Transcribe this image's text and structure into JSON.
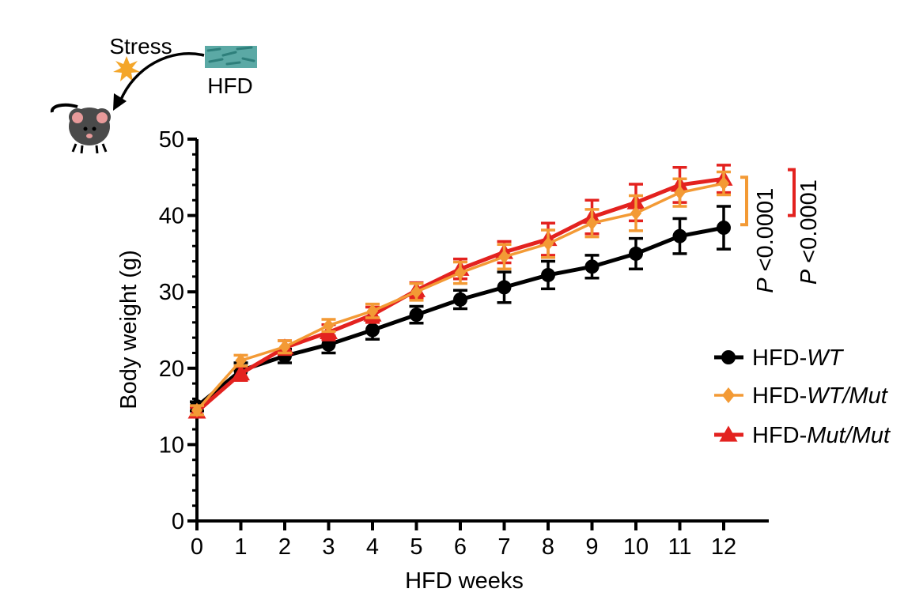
{
  "illustration": {
    "stress_label": "Stress",
    "food_label": "HFD",
    "mouse_icon": "mouse-icon",
    "stress_icon": "starburst-icon",
    "food_icon": "food-pellets-icon"
  },
  "chart_data": {
    "type": "line",
    "title": "",
    "xlabel": "HFD weeks",
    "ylabel": "Body weight (g)",
    "xlim": [
      0,
      13
    ],
    "ylim": [
      0,
      50
    ],
    "x": [
      0,
      1,
      2,
      3,
      4,
      5,
      6,
      7,
      8,
      9,
      10,
      11,
      12
    ],
    "x_tick_labels": [
      "0",
      "1",
      "2",
      "3",
      "4",
      "5",
      "6",
      "7",
      "8",
      "9",
      "10",
      "11",
      "12"
    ],
    "y_ticks": [
      0,
      10,
      20,
      30,
      40,
      50
    ],
    "y_tick_labels": [
      "0",
      "10",
      "20",
      "30",
      "40",
      "50"
    ],
    "grid": false,
    "legend_position": "right",
    "series": [
      {
        "name": "HFD-WT",
        "name_prefix": "HFD-",
        "name_italic": "WT",
        "color": "#000000",
        "marker": "circle",
        "values": [
          15.0,
          19.7,
          21.6,
          23.1,
          25.0,
          27.0,
          29.0,
          30.6,
          32.2,
          33.3,
          35.0,
          37.3,
          38.4
        ],
        "errors": [
          0.6,
          1.0,
          0.9,
          1.1,
          1.2,
          1.1,
          1.2,
          2.0,
          1.8,
          1.5,
          2.0,
          2.3,
          2.8
        ]
      },
      {
        "name": "HFD-WT/Mut",
        "name_prefix": "HFD-",
        "name_italic": "WT/Mut",
        "color": "#F39A35",
        "marker": "diamond",
        "values": [
          14.5,
          21.0,
          22.8,
          25.6,
          27.5,
          30.0,
          32.5,
          34.6,
          36.3,
          39.0,
          40.3,
          43.0,
          44.2
        ],
        "errors": [
          0.6,
          0.7,
          0.8,
          0.8,
          0.9,
          1.1,
          1.4,
          1.6,
          1.8,
          1.8,
          2.3,
          1.8,
          1.5
        ]
      },
      {
        "name": "HFD-Mut/Mut",
        "name_prefix": "HFD-",
        "name_italic": "Mut/Mut",
        "color": "#E3221F",
        "marker": "triangle",
        "values": [
          14.3,
          19.3,
          22.7,
          24.7,
          27.0,
          30.2,
          33.0,
          35.2,
          36.9,
          39.8,
          41.7,
          44.0,
          44.8
        ],
        "errors": [
          0.6,
          0.9,
          0.9,
          1.0,
          1.0,
          1.0,
          1.3,
          1.4,
          2.1,
          2.2,
          2.4,
          2.3,
          1.8
        ]
      }
    ],
    "annotations": [
      {
        "text_italic": "P",
        "text": " <0.0001",
        "color": "#F39A35",
        "from_y": 38.8,
        "to_y": 45.0
      },
      {
        "text_italic": "P",
        "text": " <0.0001",
        "color": "#E3221F",
        "from_y": 40.0,
        "to_y": 46.0
      }
    ]
  }
}
